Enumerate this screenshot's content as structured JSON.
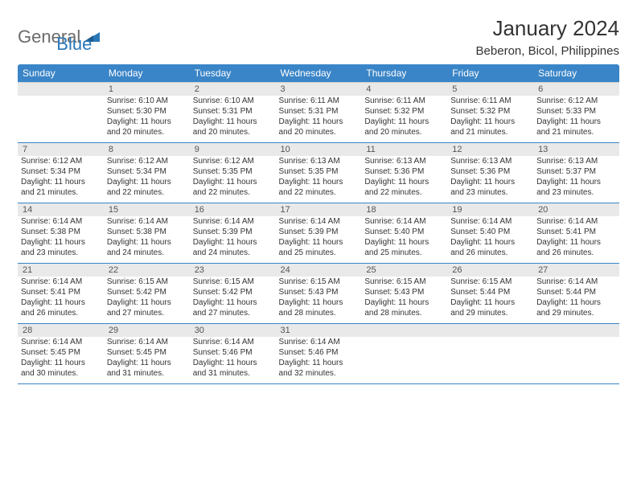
{
  "logo": {
    "general": "General",
    "blue": "Blue"
  },
  "title": "January 2024",
  "location": "Beberon, Bicol, Philippines",
  "colors": {
    "header_bg": "#3a85c7",
    "header_text": "#ffffff",
    "daynum_bg": "#e9e9e9",
    "text": "#333333",
    "logo_gray": "#6b6b6b",
    "logo_blue": "#2a77b8"
  },
  "weekdays": [
    "Sunday",
    "Monday",
    "Tuesday",
    "Wednesday",
    "Thursday",
    "Friday",
    "Saturday"
  ],
  "weeks": [
    [
      null,
      {
        "n": "1",
        "sr": "Sunrise: 6:10 AM",
        "ss": "Sunset: 5:30 PM",
        "d1": "Daylight: 11 hours",
        "d2": "and 20 minutes."
      },
      {
        "n": "2",
        "sr": "Sunrise: 6:10 AM",
        "ss": "Sunset: 5:31 PM",
        "d1": "Daylight: 11 hours",
        "d2": "and 20 minutes."
      },
      {
        "n": "3",
        "sr": "Sunrise: 6:11 AM",
        "ss": "Sunset: 5:31 PM",
        "d1": "Daylight: 11 hours",
        "d2": "and 20 minutes."
      },
      {
        "n": "4",
        "sr": "Sunrise: 6:11 AM",
        "ss": "Sunset: 5:32 PM",
        "d1": "Daylight: 11 hours",
        "d2": "and 20 minutes."
      },
      {
        "n": "5",
        "sr": "Sunrise: 6:11 AM",
        "ss": "Sunset: 5:32 PM",
        "d1": "Daylight: 11 hours",
        "d2": "and 21 minutes."
      },
      {
        "n": "6",
        "sr": "Sunrise: 6:12 AM",
        "ss": "Sunset: 5:33 PM",
        "d1": "Daylight: 11 hours",
        "d2": "and 21 minutes."
      }
    ],
    [
      {
        "n": "7",
        "sr": "Sunrise: 6:12 AM",
        "ss": "Sunset: 5:34 PM",
        "d1": "Daylight: 11 hours",
        "d2": "and 21 minutes."
      },
      {
        "n": "8",
        "sr": "Sunrise: 6:12 AM",
        "ss": "Sunset: 5:34 PM",
        "d1": "Daylight: 11 hours",
        "d2": "and 22 minutes."
      },
      {
        "n": "9",
        "sr": "Sunrise: 6:12 AM",
        "ss": "Sunset: 5:35 PM",
        "d1": "Daylight: 11 hours",
        "d2": "and 22 minutes."
      },
      {
        "n": "10",
        "sr": "Sunrise: 6:13 AM",
        "ss": "Sunset: 5:35 PM",
        "d1": "Daylight: 11 hours",
        "d2": "and 22 minutes."
      },
      {
        "n": "11",
        "sr": "Sunrise: 6:13 AM",
        "ss": "Sunset: 5:36 PM",
        "d1": "Daylight: 11 hours",
        "d2": "and 22 minutes."
      },
      {
        "n": "12",
        "sr": "Sunrise: 6:13 AM",
        "ss": "Sunset: 5:36 PM",
        "d1": "Daylight: 11 hours",
        "d2": "and 23 minutes."
      },
      {
        "n": "13",
        "sr": "Sunrise: 6:13 AM",
        "ss": "Sunset: 5:37 PM",
        "d1": "Daylight: 11 hours",
        "d2": "and 23 minutes."
      }
    ],
    [
      {
        "n": "14",
        "sr": "Sunrise: 6:14 AM",
        "ss": "Sunset: 5:38 PM",
        "d1": "Daylight: 11 hours",
        "d2": "and 23 minutes."
      },
      {
        "n": "15",
        "sr": "Sunrise: 6:14 AM",
        "ss": "Sunset: 5:38 PM",
        "d1": "Daylight: 11 hours",
        "d2": "and 24 minutes."
      },
      {
        "n": "16",
        "sr": "Sunrise: 6:14 AM",
        "ss": "Sunset: 5:39 PM",
        "d1": "Daylight: 11 hours",
        "d2": "and 24 minutes."
      },
      {
        "n": "17",
        "sr": "Sunrise: 6:14 AM",
        "ss": "Sunset: 5:39 PM",
        "d1": "Daylight: 11 hours",
        "d2": "and 25 minutes."
      },
      {
        "n": "18",
        "sr": "Sunrise: 6:14 AM",
        "ss": "Sunset: 5:40 PM",
        "d1": "Daylight: 11 hours",
        "d2": "and 25 minutes."
      },
      {
        "n": "19",
        "sr": "Sunrise: 6:14 AM",
        "ss": "Sunset: 5:40 PM",
        "d1": "Daylight: 11 hours",
        "d2": "and 26 minutes."
      },
      {
        "n": "20",
        "sr": "Sunrise: 6:14 AM",
        "ss": "Sunset: 5:41 PM",
        "d1": "Daylight: 11 hours",
        "d2": "and 26 minutes."
      }
    ],
    [
      {
        "n": "21",
        "sr": "Sunrise: 6:14 AM",
        "ss": "Sunset: 5:41 PM",
        "d1": "Daylight: 11 hours",
        "d2": "and 26 minutes."
      },
      {
        "n": "22",
        "sr": "Sunrise: 6:15 AM",
        "ss": "Sunset: 5:42 PM",
        "d1": "Daylight: 11 hours",
        "d2": "and 27 minutes."
      },
      {
        "n": "23",
        "sr": "Sunrise: 6:15 AM",
        "ss": "Sunset: 5:42 PM",
        "d1": "Daylight: 11 hours",
        "d2": "and 27 minutes."
      },
      {
        "n": "24",
        "sr": "Sunrise: 6:15 AM",
        "ss": "Sunset: 5:43 PM",
        "d1": "Daylight: 11 hours",
        "d2": "and 28 minutes."
      },
      {
        "n": "25",
        "sr": "Sunrise: 6:15 AM",
        "ss": "Sunset: 5:43 PM",
        "d1": "Daylight: 11 hours",
        "d2": "and 28 minutes."
      },
      {
        "n": "26",
        "sr": "Sunrise: 6:15 AM",
        "ss": "Sunset: 5:44 PM",
        "d1": "Daylight: 11 hours",
        "d2": "and 29 minutes."
      },
      {
        "n": "27",
        "sr": "Sunrise: 6:14 AM",
        "ss": "Sunset: 5:44 PM",
        "d1": "Daylight: 11 hours",
        "d2": "and 29 minutes."
      }
    ],
    [
      {
        "n": "28",
        "sr": "Sunrise: 6:14 AM",
        "ss": "Sunset: 5:45 PM",
        "d1": "Daylight: 11 hours",
        "d2": "and 30 minutes."
      },
      {
        "n": "29",
        "sr": "Sunrise: 6:14 AM",
        "ss": "Sunset: 5:45 PM",
        "d1": "Daylight: 11 hours",
        "d2": "and 31 minutes."
      },
      {
        "n": "30",
        "sr": "Sunrise: 6:14 AM",
        "ss": "Sunset: 5:46 PM",
        "d1": "Daylight: 11 hours",
        "d2": "and 31 minutes."
      },
      {
        "n": "31",
        "sr": "Sunrise: 6:14 AM",
        "ss": "Sunset: 5:46 PM",
        "d1": "Daylight: 11 hours",
        "d2": "and 32 minutes."
      },
      null,
      null,
      null
    ]
  ]
}
